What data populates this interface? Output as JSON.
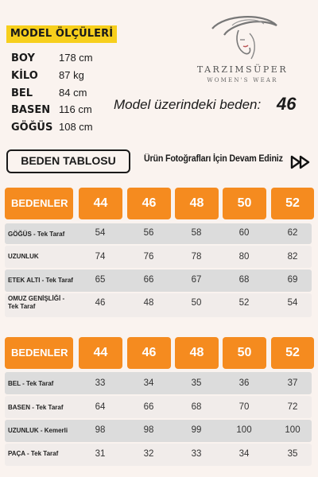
{
  "model": {
    "title": "MODEL ÖLÇÜLERİ",
    "measurements": [
      {
        "label": "BOY",
        "value": "178 cm"
      },
      {
        "label": "KİLO",
        "value": "87 kg"
      },
      {
        "label": "BEL",
        "value": "84 cm"
      },
      {
        "label": "BASEN",
        "value": "116 cm"
      },
      {
        "label": "GÖĞÜS",
        "value": "108 cm"
      }
    ],
    "size_label": "Model üzerindeki beden:",
    "size_value": "46"
  },
  "brand": {
    "name": "TARZIMSÜPER",
    "tagline": "WOMEN'S WEAR"
  },
  "actions": {
    "size_table_label": "BEDEN TABLOSU",
    "continue_text": "Ürün Fotoğrafları İçin Devam Ediniz",
    "continue_icon": "fast-forward-icon"
  },
  "colors": {
    "header_orange": "#f58b1f",
    "label_yellow": "#f7cf1c",
    "row_gray": "#dcdcdc",
    "row_light": "#f1ecea"
  },
  "tables": [
    {
      "header": "BEDENLER",
      "sizes": [
        "44",
        "46",
        "48",
        "50",
        "52"
      ],
      "rows": [
        {
          "label": "GÖĞÜS - Tek Taraf",
          "values": [
            "54",
            "56",
            "58",
            "60",
            "62"
          ]
        },
        {
          "label": "UZUNLUK",
          "values": [
            "74",
            "76",
            "78",
            "80",
            "82"
          ]
        },
        {
          "label": "ETEK ALTI - Tek Taraf",
          "values": [
            "65",
            "66",
            "67",
            "68",
            "69"
          ]
        },
        {
          "label": "OMUZ GENİŞLİĞİ -\nTek Taraf",
          "values": [
            "46",
            "48",
            "50",
            "52",
            "54"
          ]
        }
      ]
    },
    {
      "header": "BEDENLER",
      "sizes": [
        "44",
        "46",
        "48",
        "50",
        "52"
      ],
      "rows": [
        {
          "label": "BEL - Tek Taraf",
          "values": [
            "33",
            "34",
            "35",
            "36",
            "37"
          ]
        },
        {
          "label": "BASEN - Tek Taraf",
          "values": [
            "64",
            "66",
            "68",
            "70",
            "72"
          ]
        },
        {
          "label": "UZUNLUK - Kemerli",
          "values": [
            "98",
            "98",
            "99",
            "100",
            "100"
          ]
        },
        {
          "label": "PAÇA - Tek Taraf",
          "values": [
            "31",
            "32",
            "33",
            "34",
            "35"
          ]
        }
      ]
    }
  ]
}
